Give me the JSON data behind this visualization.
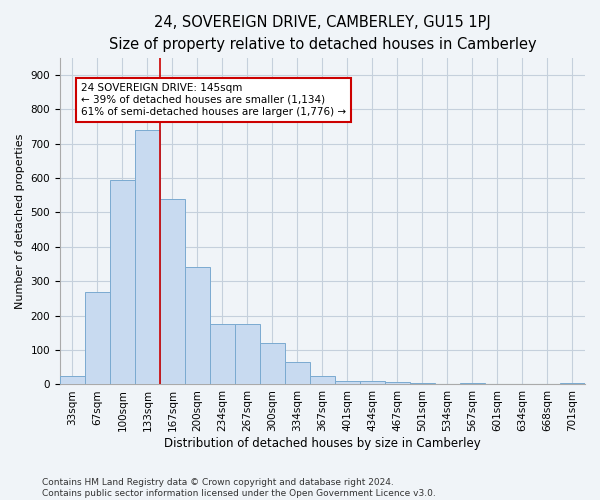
{
  "title": "24, SOVEREIGN DRIVE, CAMBERLEY, GU15 1PJ",
  "subtitle": "Size of property relative to detached houses in Camberley",
  "xlabel": "Distribution of detached houses by size in Camberley",
  "ylabel": "Number of detached properties",
  "categories": [
    "33sqm",
    "67sqm",
    "100sqm",
    "133sqm",
    "167sqm",
    "200sqm",
    "234sqm",
    "267sqm",
    "300sqm",
    "334sqm",
    "367sqm",
    "401sqm",
    "434sqm",
    "467sqm",
    "501sqm",
    "534sqm",
    "567sqm",
    "601sqm",
    "634sqm",
    "668sqm",
    "701sqm"
  ],
  "values": [
    25,
    270,
    595,
    740,
    540,
    340,
    175,
    175,
    120,
    65,
    25,
    10,
    10,
    8,
    5,
    0,
    5,
    0,
    0,
    0,
    5
  ],
  "bar_color": "#c8daf0",
  "bar_edgecolor": "#7aaad0",
  "grid_color": "#c5d0dc",
  "background_color": "#f0f4f8",
  "vline_color": "#cc0000",
  "annotation_text": "24 SOVEREIGN DRIVE: 145sqm\n← 39% of detached houses are smaller (1,134)\n61% of semi-detached houses are larger (1,776) →",
  "annotation_box_facecolor": "white",
  "annotation_box_edgecolor": "#cc0000",
  "ylim": [
    0,
    950
  ],
  "yticks": [
    0,
    100,
    200,
    300,
    400,
    500,
    600,
    700,
    800,
    900
  ],
  "footer": "Contains HM Land Registry data © Crown copyright and database right 2024.\nContains public sector information licensed under the Open Government Licence v3.0.",
  "title_fontsize": 10.5,
  "subtitle_fontsize": 9,
  "xlabel_fontsize": 8.5,
  "ylabel_fontsize": 8,
  "tick_fontsize": 7.5,
  "annot_fontsize": 7.5,
  "footer_fontsize": 6.5
}
